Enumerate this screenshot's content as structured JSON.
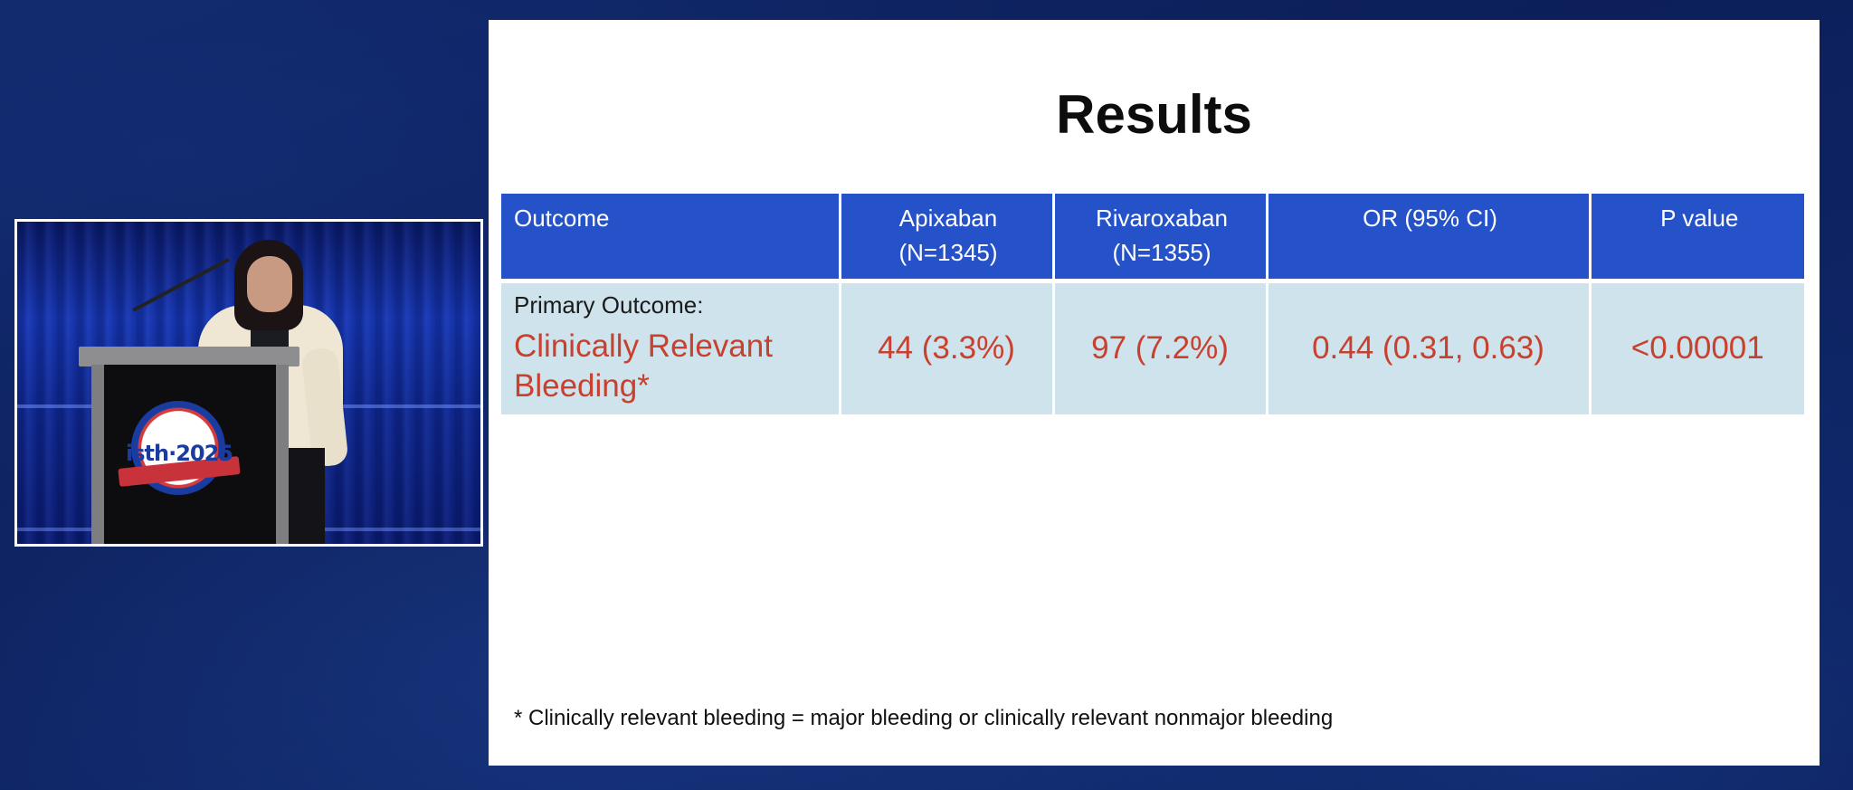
{
  "slide": {
    "title": "Results",
    "table": {
      "headers": [
        {
          "line1": "Outcome",
          "line2": ""
        },
        {
          "line1": "Apixaban",
          "line2": "(N=1345)"
        },
        {
          "line1": "Rivaroxaban",
          "line2": "(N=1355)"
        },
        {
          "line1": "OR (95% CI)",
          "line2": ""
        },
        {
          "line1": "P value",
          "line2": ""
        }
      ],
      "rows": [
        {
          "outcome_label": "Primary Outcome:",
          "outcome_name": "Clinically Relevant Bleeding*",
          "apixaban": "44 (3.3%)",
          "rivaroxaban": "97 (7.2%)",
          "or_ci": "0.44 (0.31, 0.63)",
          "p_value": "<0.00001"
        }
      ]
    },
    "footnote": "* Clinically relevant bleeding = major bleeding or clinically relevant nonmajor bleeding"
  },
  "video": {
    "logo_text": "isth·2025"
  },
  "colors": {
    "header_bg": "#2552c8",
    "row_bg": "#cfe3ec",
    "highlight_text": "#c8402e",
    "background": "#0e2565"
  }
}
